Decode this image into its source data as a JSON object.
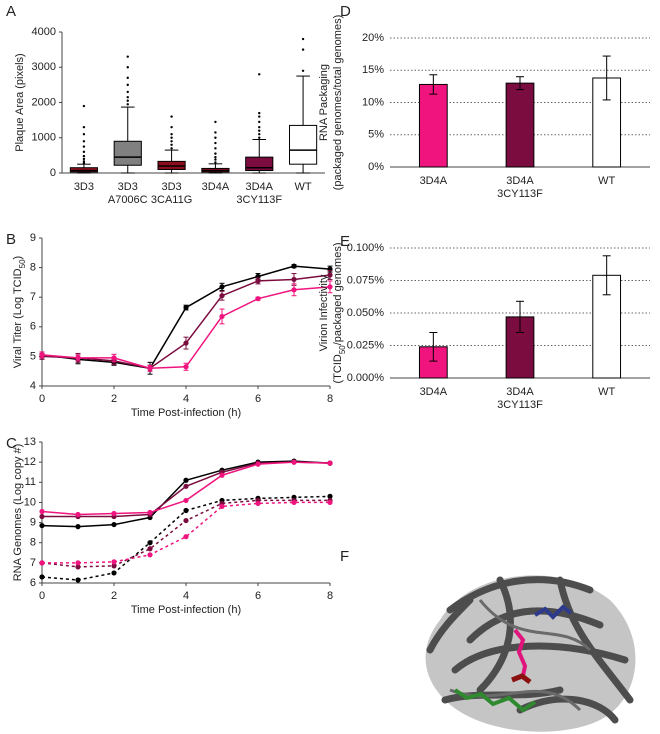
{
  "chart_data": [
    {
      "type": "box",
      "panel": "A",
      "ylabel": [
        [
          "Plaque Area (pixels)"
        ]
      ],
      "categories": [
        [
          "3D3"
        ],
        [
          "3D3",
          "A7006C"
        ],
        [
          "3D3",
          "3CA11G"
        ],
        [
          "3D4A"
        ],
        [
          "3D4A",
          "3CY113F"
        ],
        [
          "WT"
        ]
      ],
      "colors": [
        "#9b1020",
        "#808080",
        "#8b0d1d",
        "#9b1020",
        "#7b0c3f",
        "#ffffff"
      ],
      "boxes": [
        {
          "min": 0,
          "q1": 30,
          "median": 70,
          "q3": 150,
          "max": 250,
          "outliers": [
            280,
            330,
            400,
            480,
            600,
            750,
            900,
            1100,
            1300,
            1900
          ]
        },
        {
          "min": 0,
          "q1": 220,
          "median": 450,
          "q3": 900,
          "max": 1870,
          "outliers": [
            1950,
            2050,
            2150,
            2300,
            2500,
            2700,
            3000,
            3300
          ]
        },
        {
          "min": 0,
          "q1": 100,
          "median": 200,
          "q3": 330,
          "max": 650,
          "outliers": [
            700,
            800,
            900,
            1000,
            1100,
            1300,
            1600
          ]
        },
        {
          "min": 0,
          "q1": 30,
          "median": 70,
          "q3": 130,
          "max": 260,
          "outliers": [
            300,
            380,
            450,
            550,
            700,
            850,
            1000,
            1150,
            1450
          ]
        },
        {
          "min": 0,
          "q1": 70,
          "median": 150,
          "q3": 450,
          "max": 950,
          "outliers": [
            1000,
            1100,
            1200,
            1300,
            1450,
            1600,
            1700,
            2800
          ]
        },
        {
          "min": 0,
          "q1": 250,
          "median": 650,
          "q3": 1350,
          "max": 2750,
          "outliers": [
            2900,
            3500,
            3800
          ]
        }
      ],
      "ylim": [
        0,
        4000
      ],
      "yticks": [
        0,
        1000,
        2000,
        3000,
        4000
      ],
      "grid": false
    },
    {
      "type": "line",
      "panel": "B",
      "ylabel": [
        [
          "Viral Titer (Log TCID",
          "50",
          ")"
        ]
      ],
      "xlabel": "Time Post-infection (h)",
      "x": [
        0,
        1,
        2,
        3,
        4,
        5,
        6,
        7,
        8
      ],
      "series": [
        {
          "color": "#000000",
          "values": [
            5.05,
            4.9,
            4.8,
            4.6,
            6.65,
            7.35,
            7.7,
            8.05,
            7.95
          ],
          "errors": [
            0.1,
            0.15,
            0.1,
            0.2,
            0.08,
            0.12,
            0.1,
            0.05,
            0.1
          ]
        },
        {
          "color": "#7b0c3f",
          "values": [
            5.0,
            4.95,
            4.85,
            4.6,
            5.45,
            7.05,
            7.55,
            7.6,
            7.75
          ],
          "errors": [
            0.1,
            0.15,
            0.12,
            0.1,
            0.2,
            0.15,
            0.1,
            0.2,
            0.15
          ]
        },
        {
          "color": "#f0147f",
          "values": [
            5.05,
            4.95,
            4.95,
            4.6,
            4.65,
            6.35,
            6.95,
            7.25,
            7.35
          ],
          "errors": [
            0.1,
            0.1,
            0.12,
            0.1,
            0.12,
            0.25,
            0.05,
            0.2,
            0.2
          ]
        }
      ],
      "xlim": [
        0,
        8
      ],
      "xticks": [
        0,
        2,
        4,
        6,
        8
      ],
      "ylim": [
        4,
        9
      ],
      "yticks": [
        4,
        5,
        6,
        7,
        8,
        9
      ],
      "grid": false
    },
    {
      "type": "line",
      "panel": "C",
      "ylabel": [
        [
          "RNA Genomes (Log copy #)"
        ]
      ],
      "xlabel": "Time Post-infection (h)",
      "x": [
        0,
        1,
        2,
        3,
        4,
        5,
        6,
        7,
        8
      ],
      "series": [
        {
          "color": "#000000",
          "dashed": false,
          "values": [
            8.85,
            8.8,
            8.9,
            9.25,
            11.1,
            11.6,
            12.0,
            12.05,
            11.95
          ]
        },
        {
          "color": "#7b0c3f",
          "dashed": false,
          "values": [
            9.3,
            9.3,
            9.3,
            9.4,
            10.8,
            11.5,
            11.95,
            12.0,
            11.95
          ]
        },
        {
          "color": "#f0147f",
          "dashed": false,
          "values": [
            9.55,
            9.4,
            9.45,
            9.5,
            10.1,
            11.35,
            11.9,
            12.0,
            11.95
          ]
        },
        {
          "color": "#000000",
          "dashed": true,
          "values": [
            6.3,
            6.15,
            6.5,
            8.0,
            9.6,
            10.1,
            10.2,
            10.25,
            10.3
          ]
        },
        {
          "color": "#7b0c3f",
          "dashed": true,
          "values": [
            7.0,
            6.8,
            6.85,
            7.7,
            9.1,
            9.95,
            10.1,
            10.1,
            10.1
          ]
        },
        {
          "color": "#f0147f",
          "dashed": true,
          "values": [
            7.0,
            7.0,
            7.05,
            7.4,
            8.3,
            9.8,
            9.95,
            10.0,
            10.0
          ]
        }
      ],
      "xlim": [
        0,
        8
      ],
      "xticks": [
        0,
        2,
        4,
        6,
        8
      ],
      "ylim": [
        6,
        13
      ],
      "yticks": [
        6,
        7,
        8,
        9,
        10,
        11,
        12,
        13
      ],
      "grid": false
    },
    {
      "type": "bar",
      "panel": "D",
      "ylabel": [
        [
          "RNA Packaging"
        ],
        [
          "(packaged genomes/total genomes)"
        ]
      ],
      "categories": [
        [
          "3D4A"
        ],
        [
          "3D4A",
          "3CY113F"
        ],
        [
          "WT"
        ]
      ],
      "colors": [
        "#f0147f",
        "#7b0c3f",
        "#ffffff"
      ],
      "values": [
        12.8,
        13.0,
        13.8
      ],
      "errors": [
        1.5,
        1.0,
        3.4
      ],
      "ylim": [
        0,
        20
      ],
      "yticks": [
        {
          "value": 0,
          "label": "0%"
        },
        {
          "value": 5,
          "label": "5%"
        },
        {
          "value": 10,
          "label": "10%"
        },
        {
          "value": 15,
          "label": "15%"
        },
        {
          "value": 20,
          "label": "20%"
        }
      ],
      "grid": true
    },
    {
      "type": "bar",
      "panel": "E",
      "ylabel": [
        [
          "Virion Infectivity"
        ],
        [
          "(TCID",
          "50",
          "/packaged genomes)"
        ]
      ],
      "categories": [
        [
          "3D4A"
        ],
        [
          "3D4A",
          "3CY113F"
        ],
        [
          "WT"
        ]
      ],
      "colors": [
        "#f0147f",
        "#7b0c3f",
        "#ffffff"
      ],
      "values": [
        0.024,
        0.047,
        0.079
      ],
      "errors": [
        0.011,
        0.012,
        0.015
      ],
      "ylim": [
        0,
        0.1
      ],
      "yticks": [
        {
          "value": 0,
          "label": "0.000%"
        },
        {
          "value": 0.025,
          "label": "0.025%"
        },
        {
          "value": 0.05,
          "label": "0.050%"
        },
        {
          "value": 0.075,
          "label": "0.075%"
        },
        {
          "value": 0.1,
          "label": "0.100%"
        }
      ],
      "grid": true
    }
  ],
  "structure_panel": {
    "panel": "F"
  }
}
